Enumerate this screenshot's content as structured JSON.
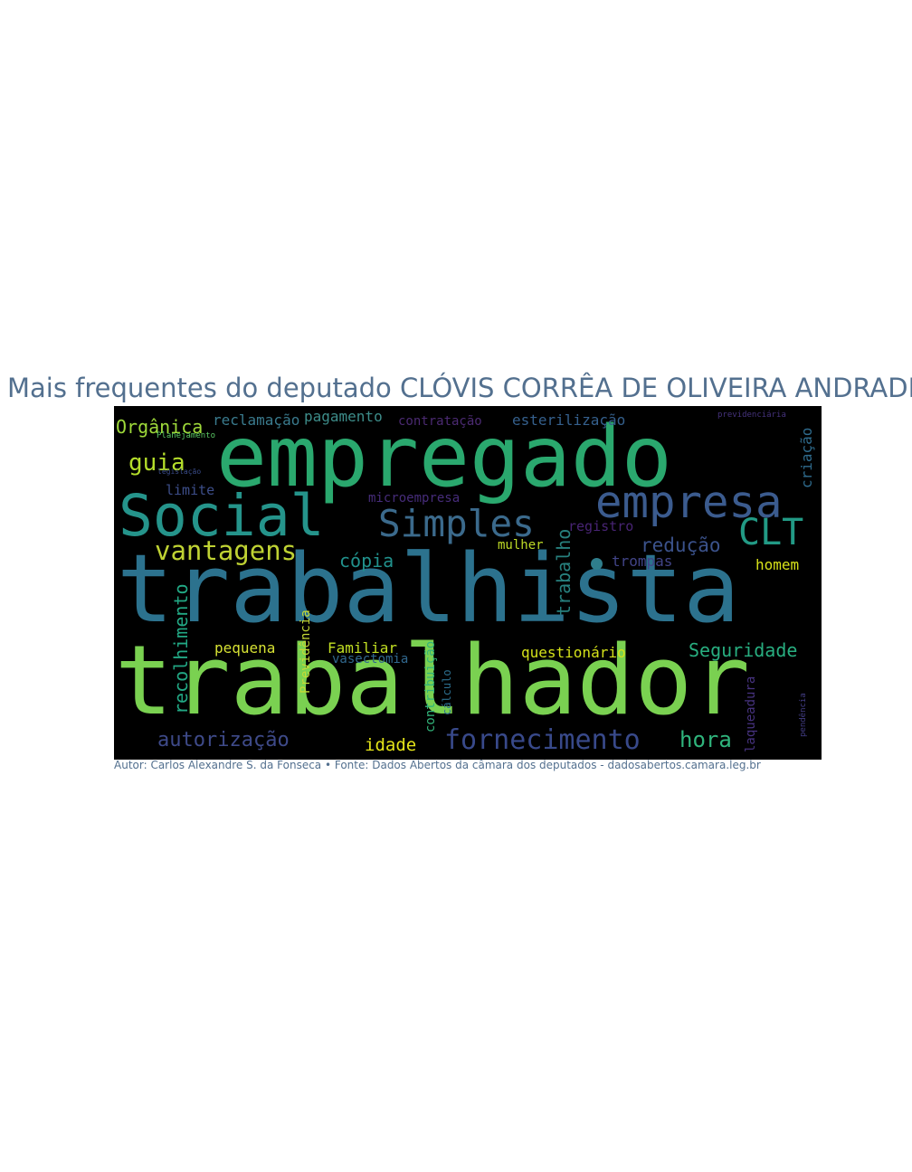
{
  "title": "Mais frequentes do deputado CLÓVIS CORRÊA DE OLIVEIRA ANDRADE",
  "credit": "Autor: Carlos Alexandre S. da Fonseca • Fonte: Dados Abertos da câmara dos deputados - dadosabertos.camara.leg.br",
  "cloud": {
    "background": "#000000",
    "words": [
      {
        "text": "empregado",
        "color": "#2aa86e"
      },
      {
        "text": "trabalhista",
        "color": "#2c728e"
      },
      {
        "text": "trabalhador",
        "color": "#7ad151"
      },
      {
        "text": "Social",
        "color": "#25948b"
      },
      {
        "text": "empresa",
        "color": "#3b5b8e"
      },
      {
        "text": "Simples",
        "color": "#3b6a8c"
      },
      {
        "text": "CLT",
        "color": "#229a85"
      },
      {
        "text": "vantagens",
        "color": "#bfd233"
      },
      {
        "text": "Orgânica",
        "color": "#9ed93a"
      },
      {
        "text": "reclamação",
        "color": "#3a7b8e"
      },
      {
        "text": "pagamento",
        "color": "#3d8d8a"
      },
      {
        "text": "contratação",
        "color": "#4b2a72"
      },
      {
        "text": "esterilização",
        "color": "#35608d"
      },
      {
        "text": "previdenciária",
        "color": "#46337e"
      },
      {
        "text": "Planejamento",
        "color": "#5ac864"
      },
      {
        "text": "guia",
        "color": "#b5de2b"
      },
      {
        "text": "legislação",
        "color": "#3a4c8a"
      },
      {
        "text": "limite",
        "color": "#3d4e8a"
      },
      {
        "text": "microempresa",
        "color": "#462c7a"
      },
      {
        "text": "criação",
        "color": "#2f6c8e"
      },
      {
        "text": "registro",
        "color": "#482474"
      },
      {
        "text": "mulher",
        "color": "#bedb27"
      },
      {
        "text": "redução",
        "color": "#3b528b"
      },
      {
        "text": "cópia",
        "color": "#21918c"
      },
      {
        "text": "trabalho",
        "color": "#27807e"
      },
      {
        "text": "trompas",
        "color": "#414487"
      },
      {
        "text": "homem",
        "color": "#d8e219"
      },
      {
        "text": "recolhimento",
        "color": "#22a884"
      },
      {
        "text": "Previdência",
        "color": "#c5d936"
      },
      {
        "text": "pequena",
        "color": "#d6e133"
      },
      {
        "text": "Familiar",
        "color": "#c2df23"
      },
      {
        "text": "vasectomia",
        "color": "#31688e"
      },
      {
        "text": "contribuição",
        "color": "#32b47a"
      },
      {
        "text": "cálculo",
        "color": "#2c6f8e"
      },
      {
        "text": "questionário",
        "color": "#d5e21a"
      },
      {
        "text": "Seguridade",
        "color": "#28ae80"
      },
      {
        "text": "laqueadura",
        "color": "#46327e"
      },
      {
        "text": "pendência",
        "color": "#433d84"
      },
      {
        "text": "autorização",
        "color": "#3e4a89"
      },
      {
        "text": "idade",
        "color": "#e4e419"
      },
      {
        "text": "fornecimento",
        "color": "#38498a"
      },
      {
        "text": "hora",
        "color": "#2fb47c"
      }
    ]
  }
}
